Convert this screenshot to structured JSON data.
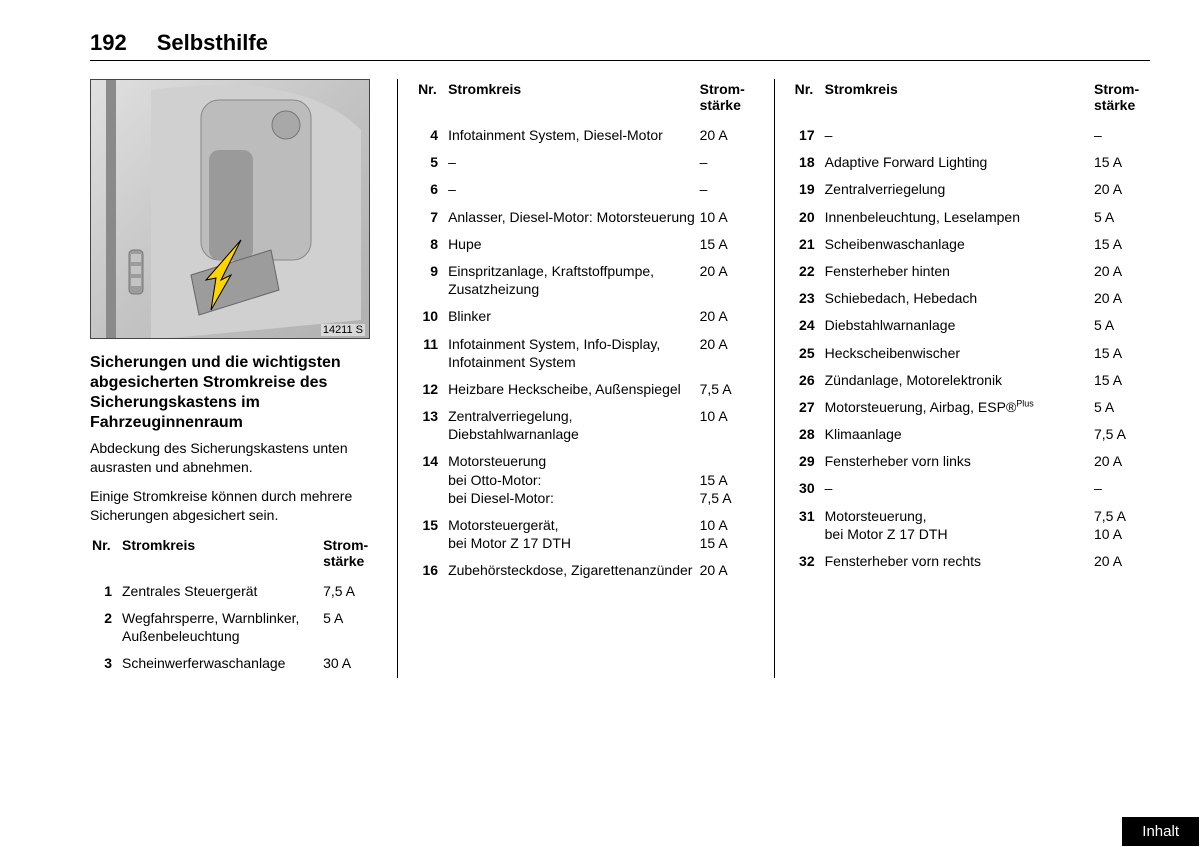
{
  "header": {
    "page_number": "192",
    "chapter": "Selbsthilfe"
  },
  "illustration": {
    "label": "14211 S"
  },
  "section": {
    "title": "Sicherungen und die wichtigsten abgesicherten Stromkreise des Sicherungskastens im Fahrzeuginnenraum",
    "para1": "Abdeckung des Sicherungskastens unten ausrasten und abnehmen.",
    "para2": "Einige Stromkreise können durch mehrere Sicherungen abgesichert sein."
  },
  "table_headers": {
    "nr": "Nr.",
    "circuit": "Stromkreis",
    "amperage": "Strom-\nstärke"
  },
  "fuses_col1": [
    {
      "nr": "1",
      "circuit": "Zentrales Steuergerät",
      "amp": "7,5 A"
    },
    {
      "nr": "2",
      "circuit": "Wegfahrsperre, Warnblinker, Außenbeleuchtung",
      "amp": "5 A"
    },
    {
      "nr": "3",
      "circuit": "Scheinwerferwaschanlage",
      "amp": "30 A"
    }
  ],
  "fuses_col2": [
    {
      "nr": "4",
      "circuit": "Infotainment System, Diesel-Motor",
      "amp": "20 A"
    },
    {
      "nr": "5",
      "circuit": "–",
      "amp": "–"
    },
    {
      "nr": "6",
      "circuit": "–",
      "amp": "–"
    },
    {
      "nr": "7",
      "circuit": "Anlasser, Diesel-Motor: Motorsteuerung",
      "amp": "10 A"
    },
    {
      "nr": "8",
      "circuit": "Hupe",
      "amp": "15 A"
    },
    {
      "nr": "9",
      "circuit": "Einspritzanlage, Kraftstoffpumpe, Zusatzheizung",
      "amp": "20 A"
    },
    {
      "nr": "10",
      "circuit": "Blinker",
      "amp": "20 A"
    },
    {
      "nr": "11",
      "circuit": "Infotainment System, Info-Display, Infotainment System",
      "amp": "20 A"
    },
    {
      "nr": "12",
      "circuit": "Heizbare Heckscheibe, Außenspiegel",
      "amp": "7,5 A"
    },
    {
      "nr": "13",
      "circuit": "Zentralverriegelung, Diebstahlwarnanlage",
      "amp": "10 A"
    },
    {
      "nr": "14",
      "circuit": "Motorsteuerung\nbei Otto-Motor:\nbei Diesel-Motor:",
      "amp": "\n15 A\n7,5 A"
    },
    {
      "nr": "15",
      "circuit": "Motorsteuergerät,\nbei Motor Z 17 DTH",
      "amp": "10 A\n15 A"
    },
    {
      "nr": "16",
      "circuit": "Zubehörsteckdose, Zigarettenanzünder",
      "amp": "20 A"
    }
  ],
  "fuses_col3": [
    {
      "nr": "17",
      "circuit": "–",
      "amp": "–"
    },
    {
      "nr": "18",
      "circuit": "Adaptive Forward Lighting",
      "amp": "15 A"
    },
    {
      "nr": "19",
      "circuit": "Zentralverriegelung",
      "amp": "20 A"
    },
    {
      "nr": "20",
      "circuit": "Innenbeleuchtung, Leselampen",
      "amp": "5 A"
    },
    {
      "nr": "21",
      "circuit": "Scheibenwaschanlage",
      "amp": "15 A"
    },
    {
      "nr": "22",
      "circuit": "Fensterheber hinten",
      "amp": "20 A"
    },
    {
      "nr": "23",
      "circuit": "Schiebedach, Hebedach",
      "amp": "20 A"
    },
    {
      "nr": "24",
      "circuit": "Diebstahlwarnanlage",
      "amp": "5 A"
    },
    {
      "nr": "25",
      "circuit": "Heckscheibenwischer",
      "amp": "15 A"
    },
    {
      "nr": "26",
      "circuit": "Zündanlage, Motorelektronik",
      "amp": "15 A"
    },
    {
      "nr": "27",
      "circuit": "Motorsteuerung, Airbag, ESP®",
      "sup": "Plus",
      "amp": "5 A"
    },
    {
      "nr": "28",
      "circuit": "Klimaanlage",
      "amp": "7,5 A"
    },
    {
      "nr": "29",
      "circuit": "Fensterheber vorn links",
      "amp": "20 A"
    },
    {
      "nr": "30",
      "circuit": "–",
      "amp": "–"
    },
    {
      "nr": "31",
      "circuit": "Motorsteuerung,\nbei Motor Z 17 DTH",
      "amp": "7,5 A\n10 A"
    },
    {
      "nr": "32",
      "circuit": "Fensterheber vorn rechts",
      "amp": "20 A"
    }
  ],
  "footer_button": "Inhalt",
  "colors": {
    "text": "#000000",
    "background": "#ffffff",
    "rule": "#000000",
    "button_bg": "#000000",
    "button_fg": "#ffffff",
    "arrow": "#ffd400"
  }
}
